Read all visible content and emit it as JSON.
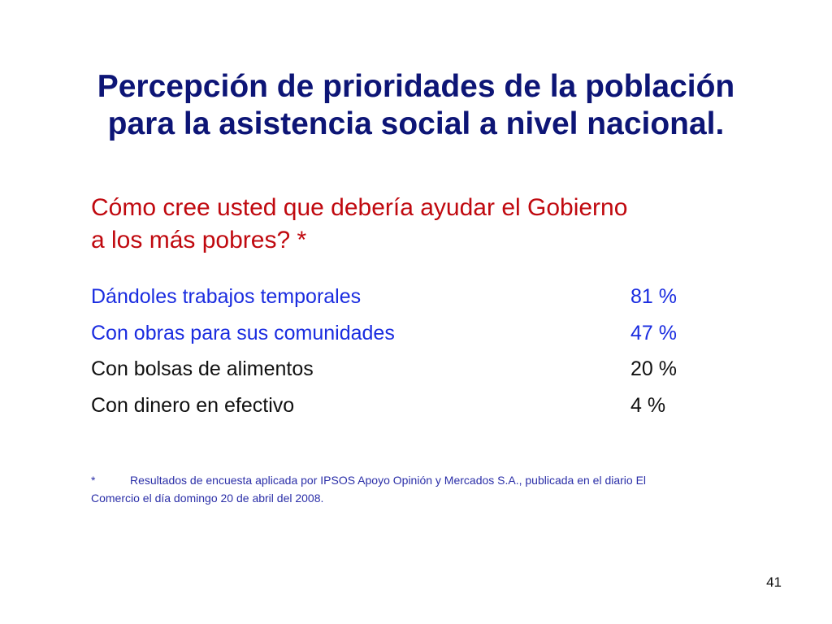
{
  "slide": {
    "title": {
      "line1": "Percepción de prioridades de la población",
      "line2": "para la asistencia social a nivel nacional."
    },
    "question": {
      "line1": "Cómo cree usted que debería ayudar el Gobierno",
      "line2": "a los más pobres? *"
    },
    "answers": [
      {
        "label": "Dándoles trabajos temporales",
        "value": "81 %"
      },
      {
        "label": "Con obras para sus comunidades",
        "value": "47 %"
      },
      {
        "label": "Con bolsas de alimentos",
        "value": "20 %"
      },
      {
        "label": "Con dinero en efectivo",
        "value": "4 %"
      }
    ],
    "footnote": {
      "marker": "*",
      "line1": "Resultados de encuesta aplicada por IPSOS Apoyo Opinión y Mercados S.A., publicada en el  diario El",
      "line2": "Comercio el día domingo 20 de abril del 2008."
    },
    "page_number": "41"
  },
  "colors": {
    "title": "#0d1576",
    "question": "#c0090f",
    "answer_highlight": "#1a2ce0",
    "answer_default": "#111111",
    "footnote": "#2b2fa8"
  }
}
